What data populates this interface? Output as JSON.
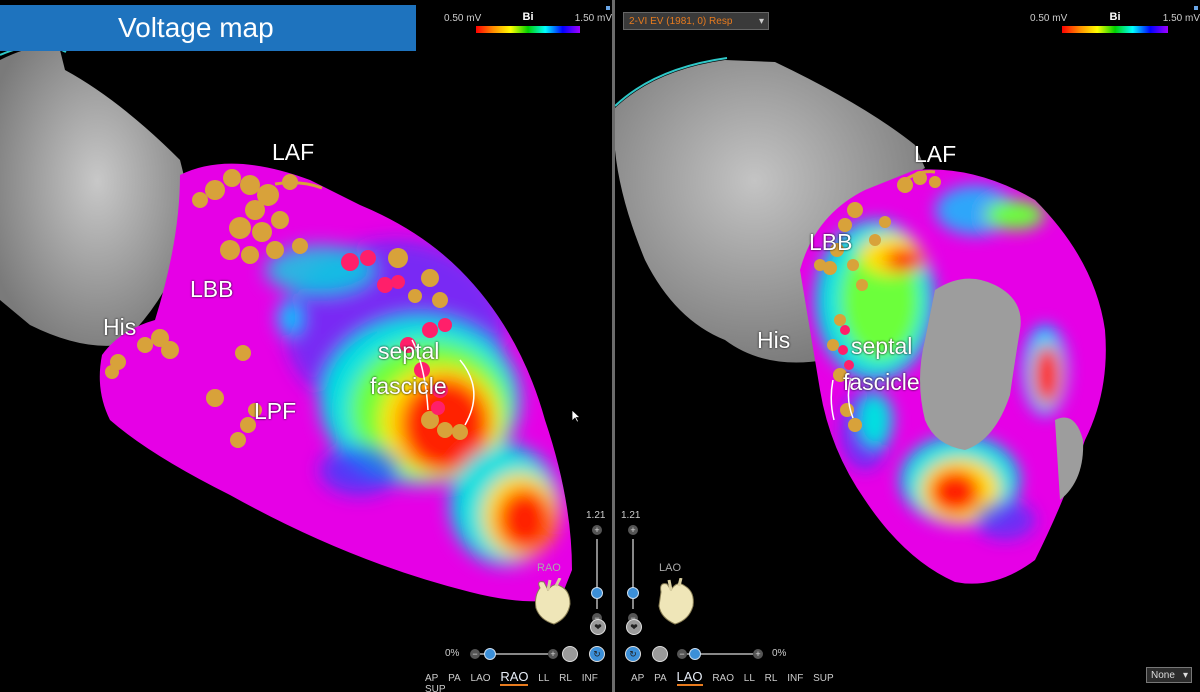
{
  "title": "Voltage map",
  "left_view": {
    "scale": {
      "min": "0.50 mV",
      "label": "Bi",
      "max": "1.50 mV"
    },
    "annotations": {
      "laf": "LAF",
      "lbb": "LBB",
      "his": "His",
      "lpf": "LPF",
      "septal": "septal",
      "fascicle": "fascicle"
    },
    "zoom_value": "1.21",
    "percent": "0%",
    "orientation": "RAO",
    "view_buttons": [
      "AP",
      "PA",
      "LAO",
      "RAO",
      "LL",
      "RL",
      "INF",
      "SUP"
    ],
    "active_view": "RAO"
  },
  "right_view": {
    "dropdown": "2-VI EV (1981, 0) Resp",
    "scale": {
      "min": "0.50 mV",
      "label": "Bi",
      "max": "1.50 mV"
    },
    "annotations": {
      "laf": "LAF",
      "lbb": "LBB",
      "his": "His",
      "septal": "septal",
      "fascicle": "fascicle"
    },
    "zoom_value": "1.21",
    "percent": "0%",
    "orientation": "LAO",
    "view_buttons": [
      "AP",
      "PA",
      "LAO",
      "RAO",
      "LL",
      "RL",
      "INF",
      "SUP"
    ],
    "active_view": "LAO"
  },
  "none_select": "None",
  "colors": {
    "title_bg": "#1e73be",
    "healthy_tissue": "#e600e6",
    "scar": "#ff0000",
    "conduction_point": "#d8a23a",
    "his_point": "#ff1f6a",
    "divider": "#6c6c6c",
    "accent": "#e87b1e"
  }
}
